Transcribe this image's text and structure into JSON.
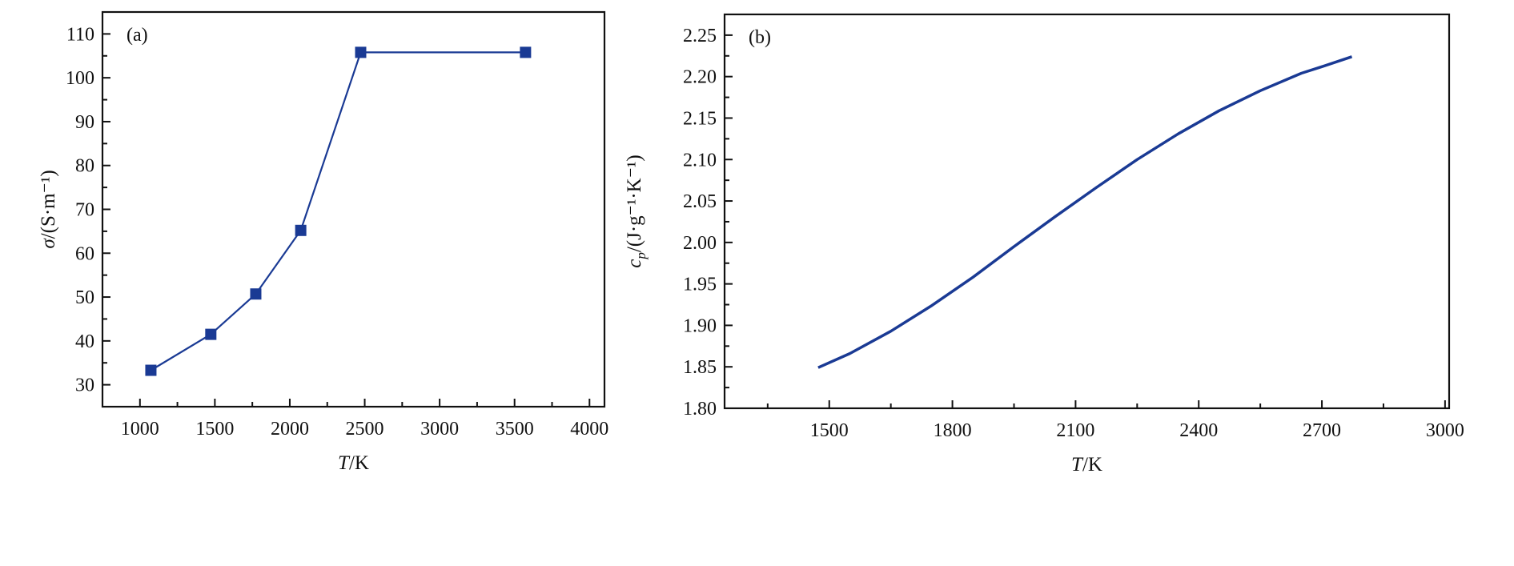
{
  "chart_data": [
    {
      "type": "line",
      "panel_label": "(a)",
      "xlabel": "T/K",
      "ylabel": "σ/(S·m⁻¹)",
      "xlim": [
        750,
        4100
      ],
      "ylim": [
        25,
        115
      ],
      "xticks": [
        1000,
        1500,
        2000,
        2500,
        3000,
        3500,
        4000
      ],
      "yticks": [
        30,
        40,
        50,
        60,
        70,
        80,
        90,
        100,
        110
      ],
      "x_minor_step": 250,
      "y_minor_step": 5,
      "grid": false,
      "markers": "square",
      "color": "#1a3a94",
      "series": [
        {
          "name": "sigma",
          "x": [
            1073,
            1473,
            1773,
            2073,
            2473,
            3573
          ],
          "y": [
            33.3,
            41.5,
            50.7,
            65.2,
            105.8,
            105.8
          ]
        }
      ]
    },
    {
      "type": "line",
      "panel_label": "(b)",
      "xlabel": "T/K",
      "ylabel": "cp/(J·g⁻¹·K⁻¹)",
      "xlim": [
        1245,
        3010
      ],
      "ylim": [
        1.8,
        2.275
      ],
      "xticks": [
        1500,
        1800,
        2100,
        2400,
        2700,
        3000
      ],
      "yticks": [
        1.8,
        1.85,
        1.9,
        1.95,
        2.0,
        2.05,
        2.1,
        2.15,
        2.2,
        2.25
      ],
      "x_minor_step": 150,
      "y_minor_step": 0.025,
      "grid": false,
      "markers": "none",
      "color": "#1a3a94",
      "series": [
        {
          "name": "cp",
          "x": [
            1473,
            1550,
            1650,
            1750,
            1850,
            1950,
            2050,
            2150,
            2250,
            2350,
            2450,
            2550,
            2650,
            2700,
            2773
          ],
          "y": [
            1.849,
            1.866,
            1.893,
            1.924,
            1.958,
            1.995,
            2.031,
            2.066,
            2.1,
            2.131,
            2.159,
            2.183,
            2.204,
            2.212,
            2.224
          ]
        }
      ]
    }
  ]
}
